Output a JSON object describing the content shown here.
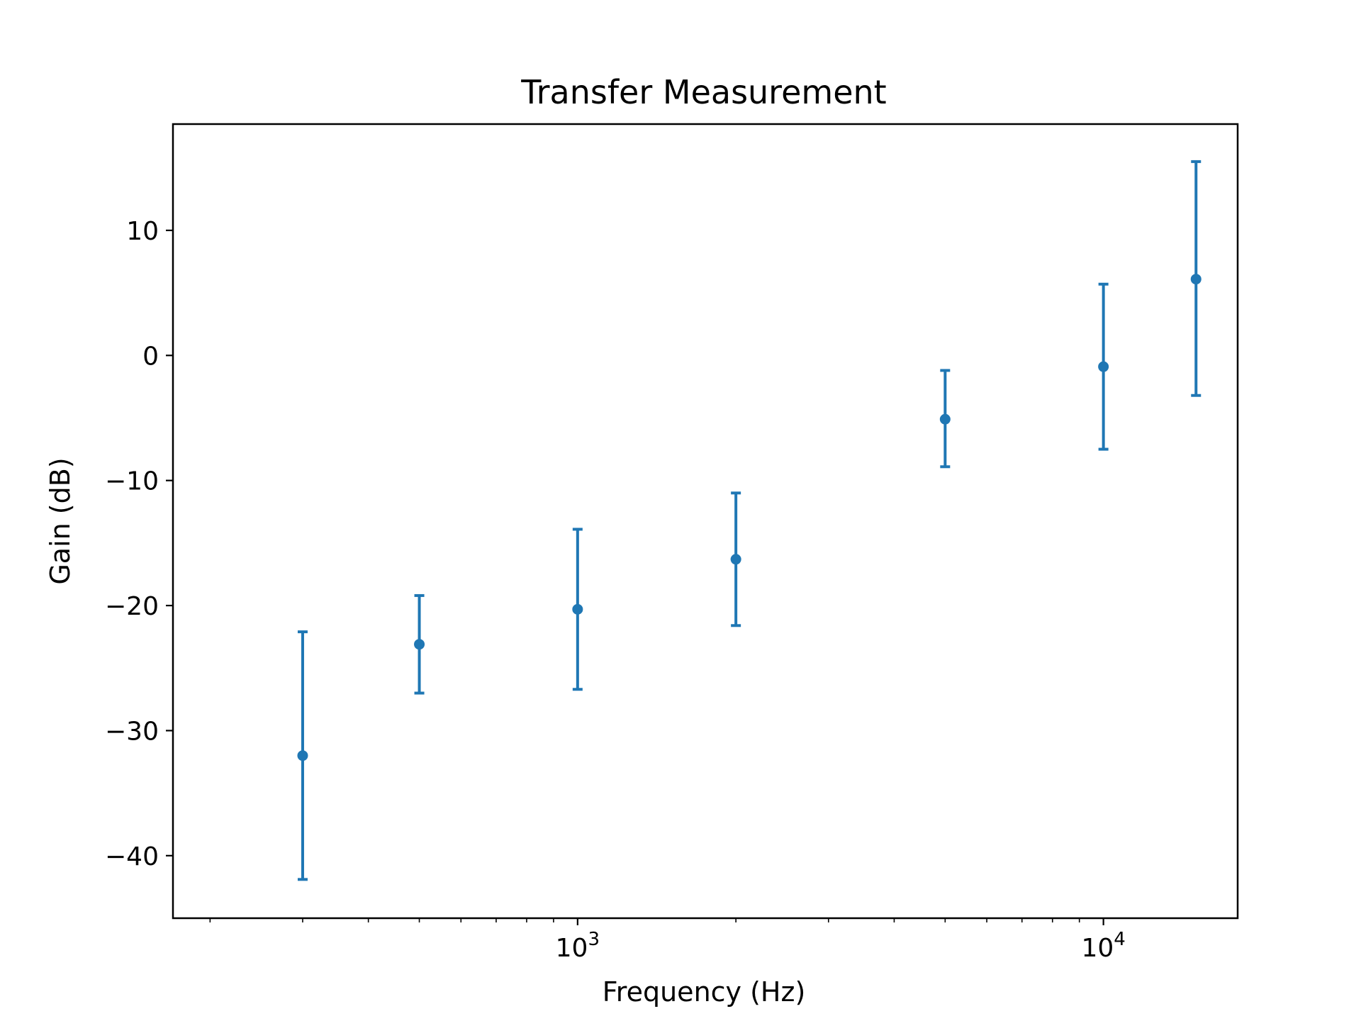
{
  "chart_data": {
    "type": "scatter",
    "title": "Transfer Measurement",
    "xlabel": "Frequency (Hz)",
    "ylabel": "Gain (dB)",
    "xscale": "log",
    "xlim": [
      170,
      18000
    ],
    "ylim": [
      -45,
      18.5
    ],
    "grid": false,
    "color": "#1f77b4",
    "x_ticks": [
      {
        "value": 1000,
        "base": "10",
        "exp": "3"
      },
      {
        "value": 10000,
        "base": "10",
        "exp": "4"
      }
    ],
    "y_ticks": [
      {
        "value": 10,
        "label": "10"
      },
      {
        "value": 0,
        "label": "0"
      },
      {
        "value": -10,
        "label": "−10"
      },
      {
        "value": -20,
        "label": "−20"
      },
      {
        "value": -30,
        "label": "−30"
      },
      {
        "value": -40,
        "label": "−40"
      }
    ],
    "series": [
      {
        "points": [
          {
            "x": 300,
            "y": -32.0,
            "lower": -41.9,
            "upper": -22.1
          },
          {
            "x": 500,
            "y": -23.1,
            "lower": -27.0,
            "upper": -19.2
          },
          {
            "x": 1000,
            "y": -20.3,
            "lower": -26.7,
            "upper": -13.9
          },
          {
            "x": 2000,
            "y": -16.3,
            "lower": -21.6,
            "upper": -11.0
          },
          {
            "x": 5000,
            "y": -5.1,
            "lower": -8.9,
            "upper": -1.2
          },
          {
            "x": 10000,
            "y": -0.9,
            "lower": -7.5,
            "upper": 5.7
          },
          {
            "x": 15000,
            "y": 6.1,
            "lower": -3.2,
            "upper": 15.5
          }
        ]
      }
    ]
  }
}
